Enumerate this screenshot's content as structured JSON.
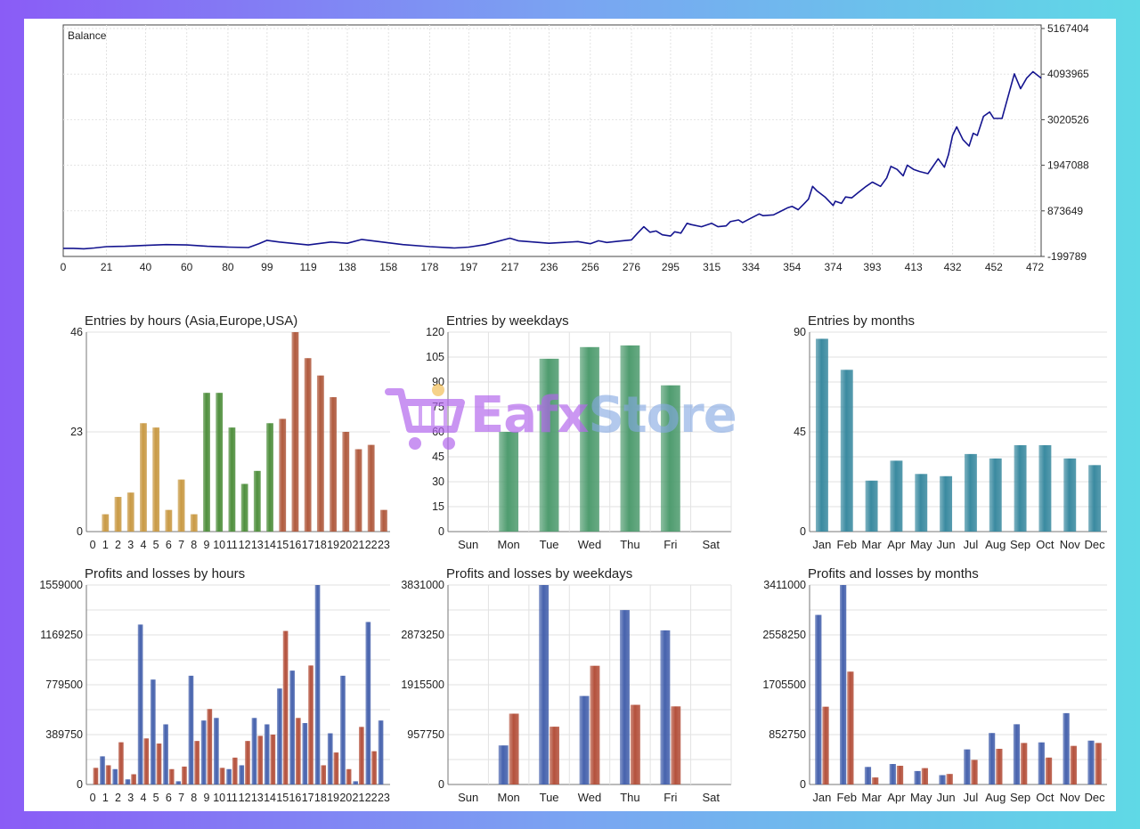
{
  "colors": {
    "balance_line": "#14148f",
    "grid": "#e2e2e2",
    "axis": "#555555",
    "hours_asia": "#c99a45",
    "hours_europe": "#4f8f3d",
    "hours_usa": "#b05a3e",
    "weekdays_bar": "#4f9c6f",
    "months_bar": "#3a8aa0",
    "profit_bar": "#4662ad",
    "loss_bar": "#b4513c",
    "watermark_purple": "#b266ec",
    "watermark_blue": "#84a8e2"
  },
  "watermark": {
    "icon": "shopping-cart-icon",
    "text_a": "Eafx",
    "text_b": "Store"
  },
  "chart_data": [
    {
      "id": "balance",
      "type": "line",
      "title": "Balance",
      "series": [
        {
          "x": [
            0,
            5,
            10,
            15,
            21,
            30,
            40,
            50,
            60,
            70,
            80,
            90,
            95,
            99,
            105,
            119,
            130,
            138,
            145,
            158,
            165,
            178,
            190,
            197,
            205,
            217,
            221,
            236,
            250,
            256,
            260,
            264,
            270,
            276,
            279,
            282,
            285,
            288,
            291,
            295,
            297,
            300,
            303,
            305,
            310,
            315,
            318,
            322,
            324,
            328,
            330,
            334,
            338,
            340,
            345,
            348,
            352,
            354,
            357,
            360,
            362,
            364,
            366,
            370,
            374,
            375,
            378,
            380,
            383,
            386,
            390,
            393,
            397,
            400,
            402,
            405,
            408,
            410,
            413,
            416,
            420,
            425,
            428,
            430,
            432,
            434,
            437,
            440,
            442,
            444,
            447,
            450,
            452,
            456,
            462,
            465,
            468,
            471,
            475
          ],
          "y": [
            -10000,
            -10000,
            -20000,
            0,
            30000,
            40000,
            60000,
            80000,
            70000,
            40000,
            20000,
            10000,
            100000,
            180000,
            140000,
            70000,
            140000,
            110000,
            200000,
            120000,
            80000,
            30000,
            0,
            20000,
            80000,
            230000,
            170000,
            110000,
            150000,
            100000,
            170000,
            130000,
            160000,
            190000,
            350000,
            500000,
            370000,
            400000,
            310000,
            280000,
            380000,
            350000,
            580000,
            550000,
            500000,
            580000,
            500000,
            520000,
            620000,
            660000,
            600000,
            700000,
            800000,
            760000,
            780000,
            850000,
            950000,
            980000,
            900000,
            1050000,
            1150000,
            1450000,
            1350000,
            1200000,
            1000000,
            1100000,
            1050000,
            1200000,
            1180000,
            1300000,
            1450000,
            1550000,
            1450000,
            1650000,
            1920000,
            1850000,
            1700000,
            1950000,
            1850000,
            1800000,
            1750000,
            2100000,
            1900000,
            2200000,
            2650000,
            2850000,
            2550000,
            2400000,
            2700000,
            2650000,
            3100000,
            3200000,
            3050000,
            3050000,
            4100000,
            3750000,
            4000000,
            4150000,
            4000000
          ]
        }
      ],
      "x_ticks": [
        "0",
        "21",
        "40",
        "60",
        "80",
        "99",
        "119",
        "138",
        "158",
        "178",
        "197",
        "217",
        "236",
        "256",
        "276",
        "295",
        "315",
        "334",
        "354",
        "374",
        "393",
        "413",
        "432",
        "452",
        "472"
      ],
      "y_ticks": [
        "5167404",
        "4093965",
        "3020526",
        "1947088",
        "873649",
        "-199789"
      ],
      "xlim": [
        0,
        475
      ],
      "ylim": [
        -199789,
        5167404
      ],
      "grid": true
    },
    {
      "id": "entries_hours",
      "type": "bar",
      "title": "Entries by hours (Asia,Europe,USA)",
      "categories": [
        "0",
        "1",
        "2",
        "3",
        "4",
        "5",
        "6",
        "7",
        "8",
        "9",
        "10",
        "11",
        "12",
        "13",
        "14",
        "15",
        "16",
        "17",
        "18",
        "19",
        "20",
        "21",
        "22",
        "23"
      ],
      "values": [
        0,
        4,
        8,
        9,
        25,
        24,
        5,
        12,
        4,
        32,
        32,
        24,
        11,
        14,
        25,
        26,
        46,
        40,
        36,
        31,
        23,
        19,
        20,
        5
      ],
      "y_ticks": [
        "46",
        "23",
        "0"
      ],
      "ylim": [
        0,
        46
      ],
      "grid": true
    },
    {
      "id": "entries_weekdays",
      "type": "bar",
      "title": "Entries by weekdays",
      "categories": [
        "Sun",
        "Mon",
        "Tue",
        "Wed",
        "Thu",
        "Fri",
        "Sat"
      ],
      "values": [
        0,
        60,
        104,
        111,
        112,
        88,
        0
      ],
      "y_ticks": [
        "120",
        "105",
        "90",
        "75",
        "60",
        "45",
        "30",
        "15",
        "0"
      ],
      "ylim": [
        0,
        120
      ],
      "grid": true
    },
    {
      "id": "entries_months",
      "type": "bar",
      "title": "Entries by months",
      "categories": [
        "Jan",
        "Feb",
        "Mar",
        "Apr",
        "May",
        "Jun",
        "Jul",
        "Aug",
        "Sep",
        "Oct",
        "Nov",
        "Dec"
      ],
      "values": [
        87,
        73,
        23,
        32,
        26,
        25,
        35,
        33,
        39,
        39,
        33,
        30
      ],
      "y_ticks": [
        "90",
        "45",
        "0"
      ],
      "ylim": [
        0,
        90
      ],
      "grid": true
    },
    {
      "id": "pl_hours",
      "type": "bar",
      "title": "Profits and losses by hours",
      "categories": [
        "0",
        "1",
        "2",
        "3",
        "4",
        "5",
        "6",
        "7",
        "8",
        "9",
        "10",
        "11",
        "12",
        "13",
        "14",
        "15",
        "16",
        "17",
        "18",
        "19",
        "20",
        "21",
        "22",
        "23"
      ],
      "series": [
        {
          "values": [
            0,
            220000,
            120000,
            40000,
            1250000,
            820000,
            470000,
            25000,
            850000,
            500000,
            520000,
            120000,
            150000,
            520000,
            470000,
            750000,
            890000,
            480000,
            1559000,
            400000,
            850000,
            25000,
            1270000,
            500000
          ]
        },
        {
          "values": [
            130000,
            150000,
            330000,
            80000,
            360000,
            320000,
            120000,
            140000,
            340000,
            590000,
            130000,
            210000,
            340000,
            380000,
            390000,
            1200000,
            520000,
            930000,
            150000,
            250000,
            120000,
            450000,
            260000,
            0
          ]
        }
      ],
      "y_ticks": [
        "1559000",
        "1169250",
        "779500",
        "389750",
        "0"
      ],
      "ylim": [
        0,
        1559000
      ],
      "grid": true
    },
    {
      "id": "pl_weekdays",
      "type": "bar",
      "title": "Profits and losses by weekdays",
      "categories": [
        "Sun",
        "Mon",
        "Tue",
        "Wed",
        "Thu",
        "Fri",
        "Sat"
      ],
      "series": [
        {
          "values": [
            0,
            750000,
            3831000,
            1700000,
            3350000,
            2960000,
            0
          ]
        },
        {
          "values": [
            0,
            1360000,
            1110000,
            2280000,
            1530000,
            1500000,
            0
          ]
        }
      ],
      "y_ticks": [
        "3831000",
        "2873250",
        "1915500",
        "957750",
        "0"
      ],
      "ylim": [
        0,
        3831000
      ],
      "grid": true
    },
    {
      "id": "pl_months",
      "type": "bar",
      "title": "Profits and losses by months",
      "categories": [
        "Jan",
        "Feb",
        "Mar",
        "Apr",
        "May",
        "Jun",
        "Jul",
        "Aug",
        "Sep",
        "Oct",
        "Nov",
        "Dec"
      ],
      "series": [
        {
          "values": [
            2900000,
            3411000,
            300000,
            350000,
            230000,
            160000,
            600000,
            880000,
            1030000,
            720000,
            1220000,
            750000
          ]
        },
        {
          "values": [
            1330000,
            1930000,
            120000,
            320000,
            280000,
            180000,
            420000,
            610000,
            710000,
            460000,
            660000,
            710000
          ]
        }
      ],
      "y_ticks": [
        "3411000",
        "2558250",
        "1705500",
        "852750",
        "0"
      ],
      "ylim": [
        0,
        3411000
      ],
      "grid": true
    }
  ]
}
